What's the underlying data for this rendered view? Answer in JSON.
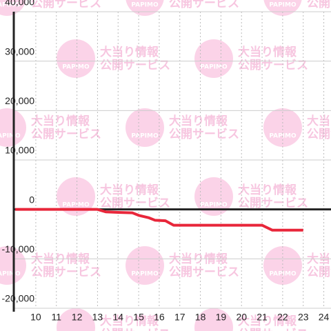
{
  "chart_data": {
    "type": "line",
    "watermark": {
      "brand": "PAPIMO",
      "line1": "大当り情報",
      "line2": "公開サービス"
    },
    "x": [
      9,
      13,
      13.4,
      14,
      14.7,
      15,
      15.5,
      15.8,
      16.3,
      16.7,
      17,
      21,
      21.5,
      23
    ],
    "series": [
      {
        "color": "#e8263a",
        "values": [
          0,
          0,
          -500,
          -600,
          -700,
          -1200,
          -1700,
          -2200,
          -2300,
          -3200,
          -3200,
          -3200,
          -4200,
          -4200
        ]
      }
    ],
    "xlim": [
      8.93,
      24.35
    ],
    "ylim": [
      -20000,
      40000
    ],
    "xticks": [
      10,
      11,
      12,
      13,
      14,
      15,
      16,
      17,
      18,
      19,
      20,
      21,
      22,
      23,
      24
    ],
    "yticks": [
      {
        "value": -20000,
        "label": "-20,000"
      },
      {
        "value": -10000,
        "label": "-10,000"
      },
      0,
      {
        "value": 10000,
        "label": "10,000"
      },
      {
        "value": 20000,
        "label": "20,000"
      },
      {
        "value": 30000,
        "label": "30,000"
      },
      {
        "value": 40000,
        "label": "40,000"
      }
    ],
    "grid": true
  }
}
